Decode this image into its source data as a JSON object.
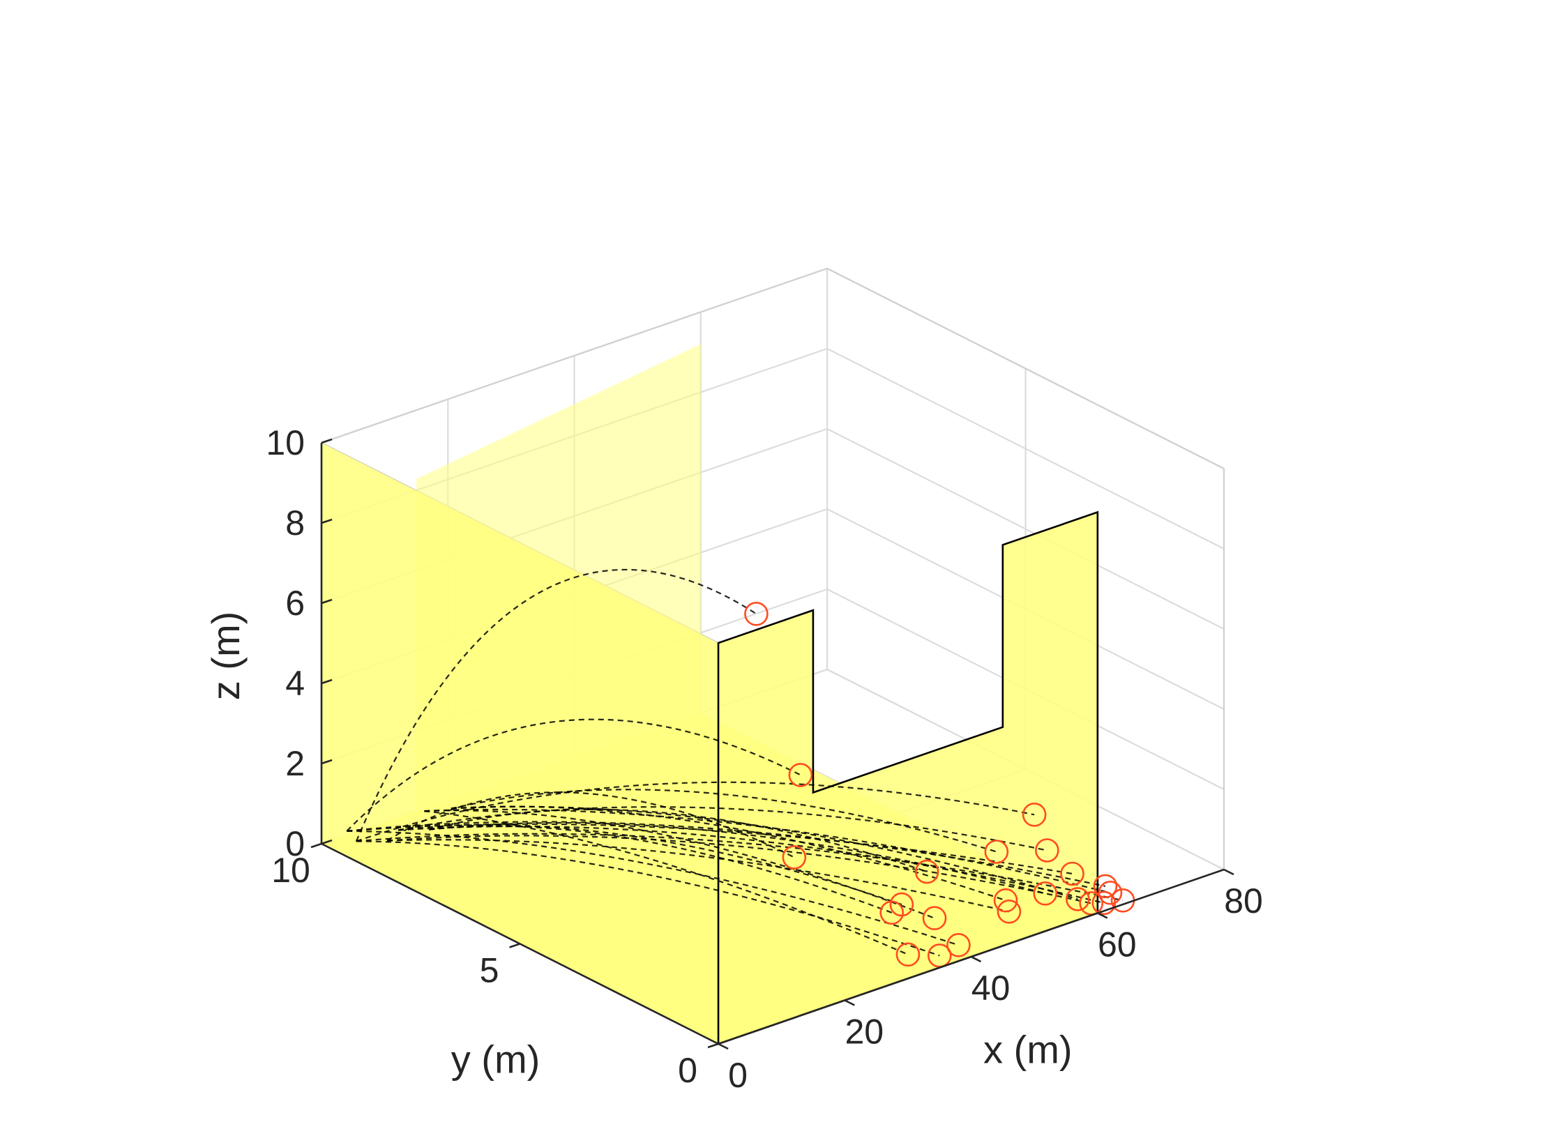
{
  "chart_data": {
    "type": "scatter",
    "view": "3d",
    "xlabel": "x (m)",
    "ylabel": "y (m)",
    "zlabel": "z (m)",
    "xlim": [
      0,
      80
    ],
    "ylim": [
      0,
      10
    ],
    "zlim": [
      0,
      10
    ],
    "x_ticks": [
      "0",
      "20",
      "40",
      "60",
      "80"
    ],
    "y_ticks": [
      "0",
      "5",
      "10"
    ],
    "z_ticks": [
      "0",
      "2",
      "4",
      "6",
      "8",
      "10"
    ],
    "grid": true,
    "walls": {
      "color": "#ffff80",
      "edge_color": "#000000",
      "back_wall_x": 0,
      "back_wall_z_max": 10,
      "side_wall_y": 0,
      "side_wall_x_range": [
        0,
        60
      ],
      "side_wall_outline_xz": [
        [
          0,
          0
        ],
        [
          0,
          11
        ],
        [
          20,
          11
        ],
        [
          20,
          6
        ],
        [
          60,
          6
        ],
        [
          60,
          11
        ],
        [
          80,
          11
        ],
        [
          80,
          0
        ]
      ],
      "lower_wall_y": 10,
      "lower_wall_x_range": [
        0,
        60
      ],
      "lower_wall_z_max": 9.2
    },
    "marker_color": "#ff4b1f",
    "path_style": "dashed",
    "path_color": "#000000",
    "points": [
      {
        "x": 6,
        "y": 0,
        "z": 10.4
      },
      {
        "x": 13,
        "y": 0,
        "z": 6.0
      },
      {
        "x": 12,
        "y": 0,
        "z": 4.0
      },
      {
        "x": 29,
        "y": 0,
        "z": 1.9
      },
      {
        "x": 33,
        "y": 0,
        "z": 2.5
      },
      {
        "x": 30,
        "y": 0,
        "z": 0.6
      },
      {
        "x": 44,
        "y": 0,
        "z": 2.4
      },
      {
        "x": 50,
        "y": 0,
        "z": 3.0
      },
      {
        "x": 38,
        "y": 0,
        "z": 0.4
      },
      {
        "x": 46,
        "y": 0,
        "z": 0.8
      },
      {
        "x": 52,
        "y": 0,
        "z": 2.0
      },
      {
        "x": 40,
        "y": 2.0,
        "z": 0.1
      },
      {
        "x": 43,
        "y": 1.4,
        "z": 0.1
      },
      {
        "x": 53,
        "y": 1.2,
        "z": 0.1
      },
      {
        "x": 35,
        "y": 0,
        "z": 0.3
      },
      {
        "x": 56,
        "y": 0,
        "z": 1.2
      },
      {
        "x": 59,
        "y": 0,
        "z": 0.3
      },
      {
        "x": 61,
        "y": 0,
        "z": 0.2
      },
      {
        "x": 58,
        "y": 1.0,
        "z": 0.1
      },
      {
        "x": 62,
        "y": 0,
        "z": 0.4
      },
      {
        "x": 60,
        "y": 0.5,
        "z": 0.1
      },
      {
        "x": 64,
        "y": 0,
        "z": 0.1
      },
      {
        "x": 65,
        "y": 0.6,
        "z": 0.1
      }
    ]
  }
}
